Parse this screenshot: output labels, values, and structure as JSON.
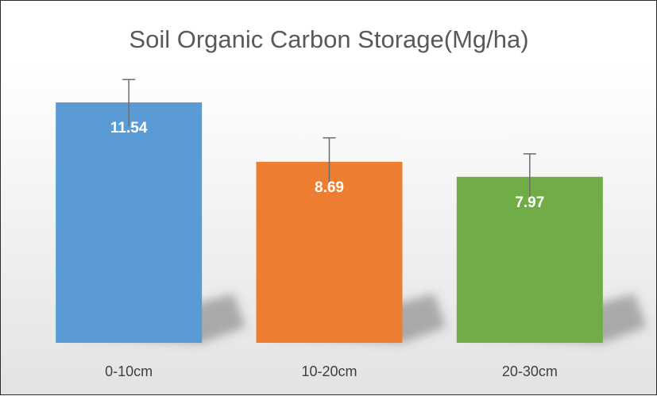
{
  "chart_data": {
    "type": "bar",
    "title": "Soil Organic Carbon Storage(Mg/ha)",
    "xlabel": "",
    "ylabel": "",
    "categories": [
      "0-10cm",
      "10-20cm",
      "20-30cm"
    ],
    "values": [
      11.54,
      8.69,
      7.97
    ],
    "data_labels": [
      "11.54",
      "8.69",
      "7.97"
    ],
    "error_bars": [
      1.1,
      1.15,
      1.1
    ],
    "colors": [
      "#5b9bd5",
      "#ed7d31",
      "#70ad47"
    ],
    "ylim": [
      0,
      12.8
    ],
    "grid": false,
    "legend": "none"
  }
}
